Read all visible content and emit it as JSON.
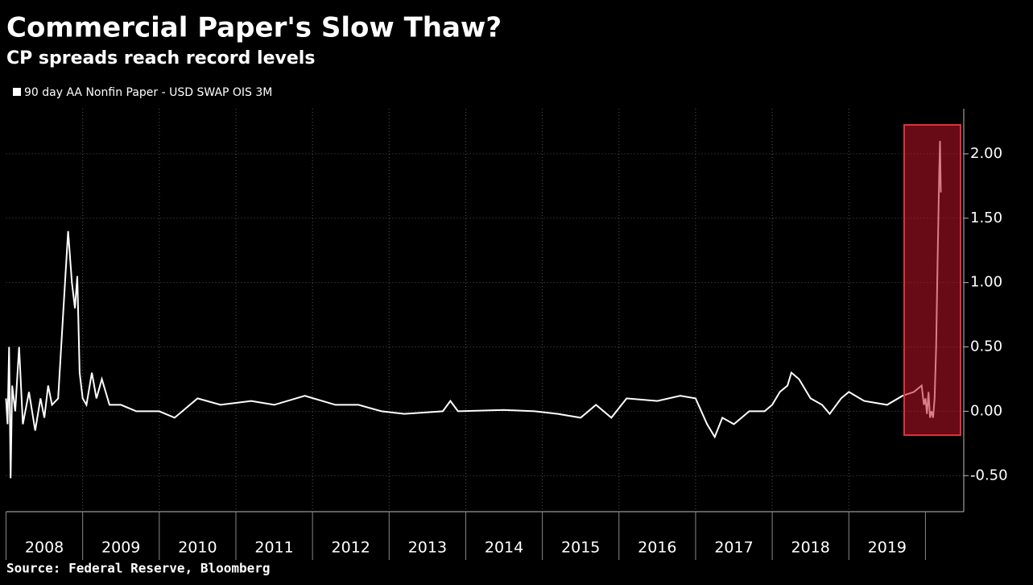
{
  "chart_data": {
    "type": "line",
    "title": "Commercial Paper's Slow Thaw?",
    "subtitle": "CP spreads reach record levels",
    "source": "Source: Federal Reserve, Bloomberg",
    "series": [
      {
        "name": "90 day AA Nonfin Paper - USD SWAP OIS 3M",
        "color": "#ffffff",
        "x": [
          2008.0,
          2008.02,
          2008.04,
          2008.06,
          2008.08,
          2008.12,
          2008.17,
          2008.22,
          2008.3,
          2008.38,
          2008.45,
          2008.5,
          2008.55,
          2008.6,
          2008.68,
          2008.72,
          2008.76,
          2008.81,
          2008.86,
          2008.9,
          2008.93,
          2008.96,
          2009.0,
          2009.05,
          2009.12,
          2009.18,
          2009.25,
          2009.35,
          2009.5,
          2009.7,
          2010.0,
          2010.2,
          2010.5,
          2010.8,
          2011.2,
          2011.5,
          2011.9,
          2012.3,
          2012.6,
          2012.9,
          2013.2,
          2013.7,
          2013.8,
          2013.9,
          2014.5,
          2014.9,
          2015.2,
          2015.5,
          2015.7,
          2015.9,
          2016.1,
          2016.5,
          2016.8,
          2017.0,
          2017.15,
          2017.25,
          2017.35,
          2017.5,
          2017.7,
          2017.9,
          2018.0,
          2018.1,
          2018.2,
          2018.25,
          2018.35,
          2018.5,
          2018.65,
          2018.75,
          2018.9,
          2019.0,
          2019.2,
          2019.5,
          2019.7,
          2019.85,
          2019.95,
          2019.98,
          2020.0,
          2020.02,
          2020.04,
          2020.06,
          2020.08,
          2020.1,
          2020.12,
          2020.14,
          2020.16,
          2020.18,
          2020.19,
          2020.2
        ],
        "values": [
          0.1,
          -0.1,
          0.5,
          -0.52,
          0.2,
          0.0,
          0.5,
          -0.1,
          0.15,
          -0.15,
          0.1,
          -0.05,
          0.2,
          0.05,
          0.1,
          0.5,
          0.9,
          1.4,
          1.0,
          0.8,
          1.05,
          0.3,
          0.1,
          0.05,
          0.3,
          0.1,
          0.25,
          0.05,
          0.05,
          0.0,
          0.0,
          -0.05,
          0.1,
          0.05,
          0.08,
          0.05,
          0.12,
          0.05,
          0.05,
          0.0,
          -0.02,
          0.0,
          0.08,
          0.0,
          0.01,
          0.0,
          -0.02,
          -0.05,
          0.05,
          -0.05,
          0.1,
          0.08,
          0.12,
          0.1,
          -0.1,
          -0.2,
          -0.05,
          -0.1,
          0.0,
          0.0,
          0.05,
          0.15,
          0.2,
          0.3,
          0.25,
          0.1,
          0.05,
          -0.02,
          0.1,
          0.15,
          0.08,
          0.05,
          0.12,
          0.15,
          0.2,
          0.05,
          0.1,
          -0.02,
          0.15,
          -0.05,
          0.0,
          -0.05,
          0.1,
          0.5,
          1.2,
          1.85,
          2.1,
          1.7
        ]
      }
    ],
    "xlim": [
      2008,
      2020.5
    ],
    "xticks": [
      2008,
      2009,
      2010,
      2011,
      2012,
      2013,
      2014,
      2015,
      2016,
      2017,
      2018,
      2019
    ],
    "ylim": [
      -0.78,
      2.35
    ],
    "yticks": [
      {
        "value": -0.5,
        "label": "-0.50"
      },
      {
        "value": 0,
        "label": "0.00"
      },
      {
        "value": 0.5,
        "label": "0.50"
      },
      {
        "value": 1,
        "label": "1.00"
      },
      {
        "value": 1.5,
        "label": "1.50"
      },
      {
        "value": 2,
        "label": "2.00"
      }
    ],
    "grid": true
  }
}
